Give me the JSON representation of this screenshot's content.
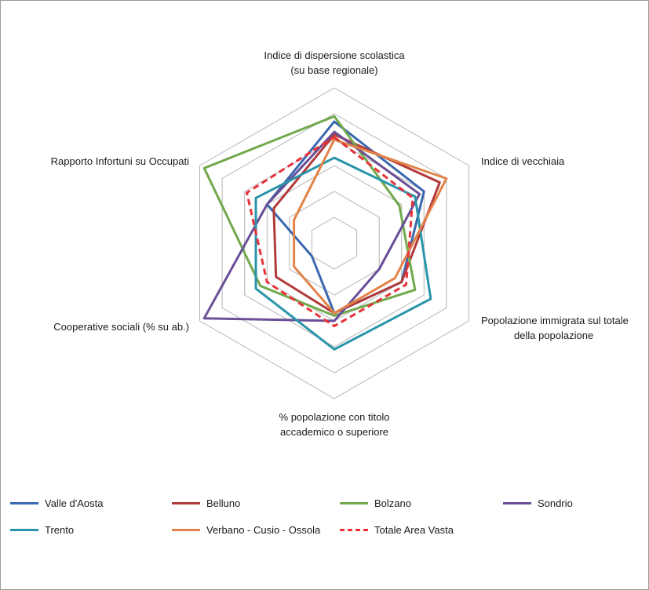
{
  "chart_data": {
    "type": "radar",
    "title": "",
    "axes": [
      "Indice di dispersione scolastica (su base regionale)",
      "Indice di vecchiaia",
      "Popolazione immigrata sul totale della popolazione",
      "% popolazione con titolo accademico o superiore",
      "Cooperative sociali (% su ab.)",
      "Rapporto Infortuni su Occupati"
    ],
    "axis_label_lines": [
      [
        "Indice di dispersione scolastica",
        "(su base regionale)"
      ],
      [
        "Indice di vecchiaia"
      ],
      [
        "Popolazione immigrata sul totale",
        "della popolazione"
      ],
      [
        "% popolazione con titolo",
        "accademico o superiore"
      ],
      [
        "Cooperative sociali (% su ab.)"
      ],
      [
        "Rapporto Infortuni su Occupati"
      ]
    ],
    "scale": {
      "rings": 6,
      "min": 0,
      "max": 6
    },
    "gridlines": true,
    "legend_position": "bottom",
    "series": [
      {
        "name": "Valle d'Aosta",
        "color": "#3a67b0",
        "dashed": false,
        "values": [
          4.7,
          4.0,
          3.0,
          2.7,
          1.0,
          3.0
        ]
      },
      {
        "name": "Belluno",
        "color": "#b13a3a",
        "dashed": false,
        "values": [
          4.2,
          4.7,
          3.0,
          2.7,
          2.6,
          2.7
        ]
      },
      {
        "name": "Bolzano",
        "color": "#71a94c",
        "dashed": false,
        "values": [
          4.9,
          2.9,
          3.6,
          2.8,
          3.3,
          5.8
        ]
      },
      {
        "name": "Sondrio",
        "color": "#6a4f98",
        "dashed": false,
        "values": [
          4.3,
          3.8,
          2.0,
          3.0,
          5.8,
          3.0
        ]
      },
      {
        "name": "Trento",
        "color": "#2a95aa",
        "dashed": false,
        "values": [
          3.3,
          3.6,
          4.3,
          4.1,
          3.5,
          3.5
        ]
      },
      {
        "name": "Verbano - Cusio - Ossola",
        "color": "#e2834a",
        "dashed": false,
        "values": [
          4.0,
          5.0,
          2.7,
          2.7,
          1.8,
          1.8
        ]
      },
      {
        "name": "Totale Area Vasta",
        "color": "#e8323a",
        "dashed": true,
        "values": [
          4.1,
          3.5,
          3.2,
          3.2,
          3.0,
          3.9
        ]
      }
    ]
  }
}
